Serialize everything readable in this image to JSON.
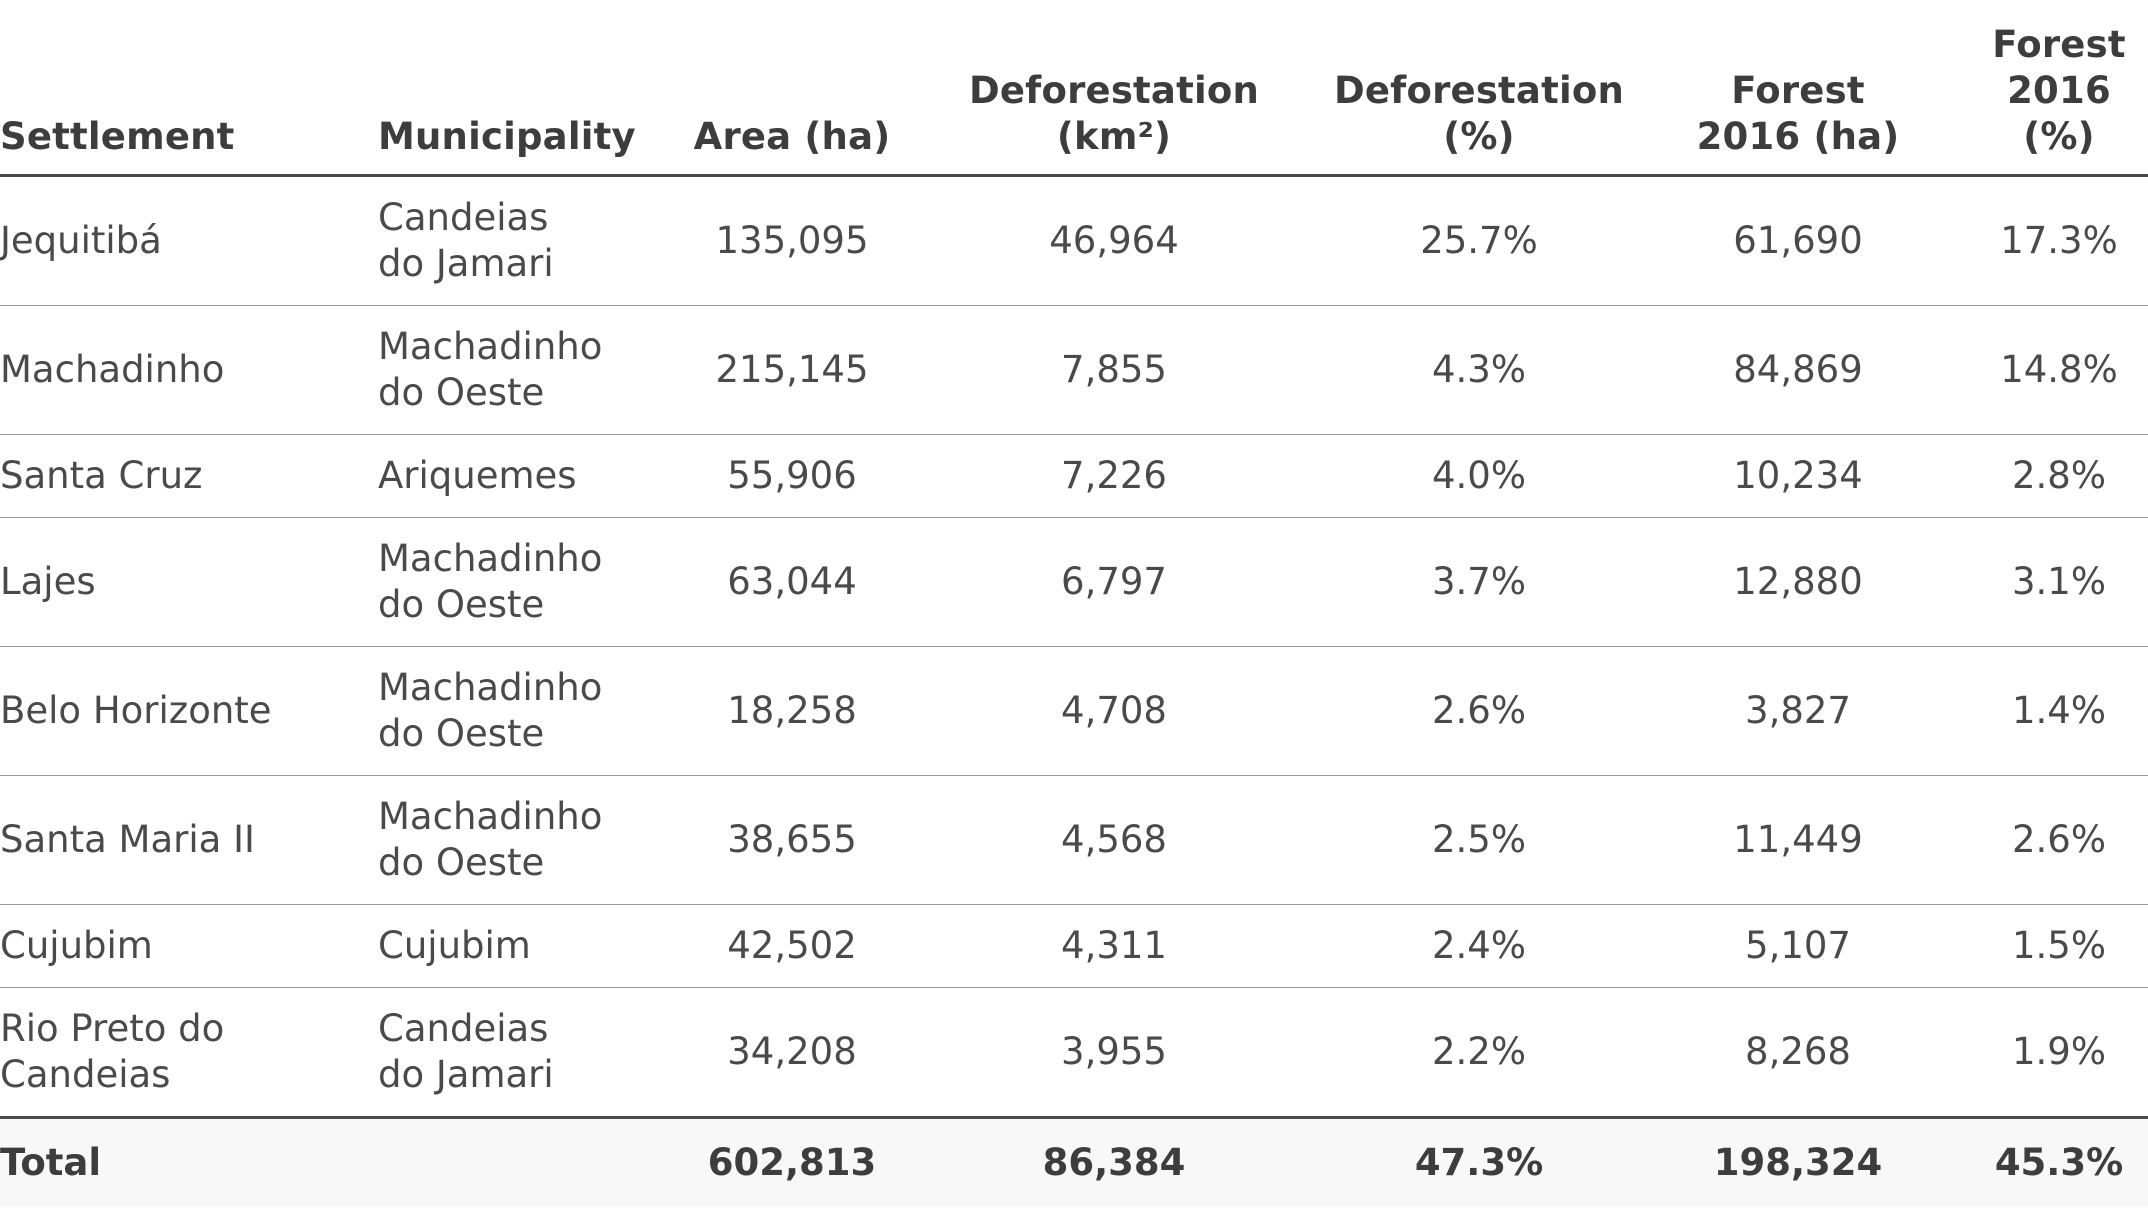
{
  "headers": [
    {
      "line1": "",
      "line2": "Settlement"
    },
    {
      "line1": "",
      "line2": "Municipality"
    },
    {
      "line1": "",
      "line2": "Area (ha)"
    },
    {
      "line1": "Deforestation",
      "line2": "(km²)"
    },
    {
      "line1": "Deforestation",
      "line2": "(%)"
    },
    {
      "line1": "Forest",
      "line2": "2016 (ha)"
    },
    {
      "line1": "Forest",
      "line2": "2016 (%)"
    }
  ],
  "rows": [
    {
      "settlement": [
        "Jequitibá"
      ],
      "municipality": [
        "Candeias",
        "do Jamari"
      ],
      "area": "135,095",
      "def_km2": "46,964",
      "def_pct": "25.7%",
      "forest_ha": "61,690",
      "forest_pct": "17.3%"
    },
    {
      "settlement": [
        "Machadinho"
      ],
      "municipality": [
        "Machadinho",
        "do Oeste"
      ],
      "area": "215,145",
      "def_km2": "7,855",
      "def_pct": "4.3%",
      "forest_ha": "84,869",
      "forest_pct": "14.8%"
    },
    {
      "settlement": [
        "Santa Cruz"
      ],
      "municipality": [
        "Ariquemes"
      ],
      "area": "55,906",
      "def_km2": "7,226",
      "def_pct": "4.0%",
      "forest_ha": "10,234",
      "forest_pct": "2.8%"
    },
    {
      "settlement": [
        "Lajes"
      ],
      "municipality": [
        "Machadinho",
        "do Oeste"
      ],
      "area": "63,044",
      "def_km2": "6,797",
      "def_pct": "3.7%",
      "forest_ha": "12,880",
      "forest_pct": "3.1%"
    },
    {
      "settlement": [
        "Belo Horizonte"
      ],
      "municipality": [
        "Machadinho",
        "do Oeste"
      ],
      "area": "18,258",
      "def_km2": "4,708",
      "def_pct": "2.6%",
      "forest_ha": "3,827",
      "forest_pct": "1.4%"
    },
    {
      "settlement": [
        "Santa Maria II"
      ],
      "municipality": [
        "Machadinho",
        "do Oeste"
      ],
      "area": "38,655",
      "def_km2": "4,568",
      "def_pct": "2.5%",
      "forest_ha": "11,449",
      "forest_pct": "2.6%"
    },
    {
      "settlement": [
        "Cujubim"
      ],
      "municipality": [
        "Cujubim"
      ],
      "area": "42,502",
      "def_km2": "4,311",
      "def_pct": "2.4%",
      "forest_ha": "5,107",
      "forest_pct": "1.5%"
    },
    {
      "settlement": [
        "Rio Preto do",
        "Candeias"
      ],
      "municipality": [
        "Candeias",
        "do Jamari"
      ],
      "area": "34,208",
      "def_km2": "3,955",
      "def_pct": "2.2%",
      "forest_ha": "8,268",
      "forest_pct": "1.9%"
    }
  ],
  "total": {
    "label": "Total",
    "municipality": "",
    "area": "602,813",
    "def_km2": "86,384",
    "def_pct": "47.3%",
    "forest_ha": "198,324",
    "forest_pct": "45.3%"
  }
}
